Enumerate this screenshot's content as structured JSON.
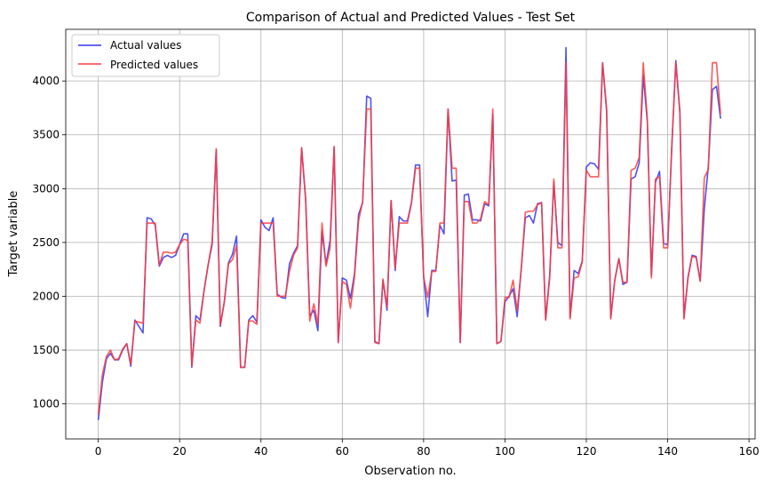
{
  "chart_data": {
    "type": "line",
    "title": "Comparison of Actual and Predicted Values - Test Set",
    "xlabel": "Observation no.",
    "ylabel": "Target variable",
    "xlim": [
      -8,
      161.5
    ],
    "ylim": [
      675,
      4480
    ],
    "xticks": [
      0,
      20,
      40,
      60,
      80,
      100,
      120,
      140,
      160
    ],
    "yticks": [
      1000,
      1500,
      2000,
      2500,
      3000,
      3500,
      4000
    ],
    "grid": true,
    "legend_position": "top-left",
    "x": [
      0,
      1,
      2,
      3,
      4,
      5,
      6,
      7,
      8,
      9,
      10,
      11,
      12,
      13,
      14,
      15,
      16,
      17,
      18,
      19,
      20,
      21,
      22,
      23,
      24,
      25,
      26,
      27,
      28,
      29,
      30,
      31,
      32,
      33,
      34,
      35,
      36,
      37,
      38,
      39,
      40,
      41,
      42,
      43,
      44,
      45,
      46,
      47,
      48,
      49,
      50,
      51,
      52,
      53,
      54,
      55,
      56,
      57,
      58,
      59,
      60,
      61,
      62,
      63,
      64,
      65,
      66,
      67,
      68,
      69,
      70,
      71,
      72,
      73,
      74,
      75,
      76,
      77,
      78,
      79,
      80,
      81,
      82,
      83,
      84,
      85,
      86,
      87,
      88,
      89,
      90,
      91,
      92,
      93,
      94,
      95,
      96,
      97,
      98,
      99,
      100,
      101,
      102,
      103,
      104,
      105,
      106,
      107,
      108,
      109,
      110,
      111,
      112,
      113,
      114,
      115,
      116,
      117,
      118,
      119,
      120,
      121,
      122,
      123,
      124,
      125,
      126,
      127,
      128,
      129,
      130,
      131,
      132,
      133,
      134,
      135,
      136,
      137,
      138,
      139,
      140,
      141,
      142,
      143,
      144,
      145,
      146,
      147,
      148,
      149,
      150,
      151,
      152,
      153
    ],
    "series": [
      {
        "name": "Actual values",
        "color": "#3333ee",
        "values": [
          850,
          1200,
          1420,
          1470,
          1410,
          1410,
          1500,
          1560,
          1350,
          1780,
          1720,
          1660,
          2730,
          2720,
          2660,
          2280,
          2360,
          2380,
          2360,
          2380,
          2480,
          2580,
          2580,
          1340,
          1820,
          1780,
          2050,
          2290,
          2480,
          3360,
          1720,
          1950,
          2310,
          2390,
          2560,
          1340,
          1340,
          1780,
          1820,
          1760,
          2710,
          2640,
          2610,
          2730,
          2020,
          1990,
          1980,
          2300,
          2400,
          2470,
          3380,
          2900,
          1820,
          1870,
          1680,
          2600,
          2300,
          2520,
          3390,
          1570,
          2170,
          2150,
          1980,
          2210,
          2760,
          2870,
          3860,
          3840,
          1580,
          1560,
          2150,
          1870,
          2890,
          2240,
          2740,
          2700,
          2700,
          2870,
          3220,
          3220,
          2180,
          1810,
          2240,
          2240,
          2660,
          2580,
          3740,
          3070,
          3080,
          1570,
          2940,
          2950,
          2710,
          2710,
          2700,
          2860,
          2840,
          3690,
          1560,
          1580,
          1950,
          2000,
          2070,
          1810,
          2260,
          2730,
          2750,
          2680,
          2860,
          2870,
          1780,
          2200,
          3060,
          2500,
          2470,
          4310,
          1800,
          2240,
          2210,
          2330,
          3200,
          3240,
          3230,
          3180,
          4170,
          3710,
          1800,
          2150,
          2350,
          2110,
          2130,
          3090,
          3110,
          3240,
          4050,
          3620,
          2190,
          3060,
          3160,
          2490,
          2480,
          3370,
          4190,
          3720,
          1800,
          2180,
          2380,
          2370,
          2140,
          2810,
          3210,
          3920,
          3950,
          3650
        ],
        "legend_label": "Actual values"
      },
      {
        "name": "Predicted values",
        "color": "#ff3b3b",
        "values": [
          900,
          1270,
          1440,
          1500,
          1410,
          1420,
          1510,
          1560,
          1370,
          1770,
          1760,
          1750,
          2680,
          2680,
          2680,
          2290,
          2410,
          2410,
          2400,
          2410,
          2480,
          2530,
          2520,
          1350,
          1780,
          1750,
          2050,
          2290,
          2510,
          3370,
          1730,
          1950,
          2300,
          2340,
          2470,
          1340,
          1340,
          1770,
          1770,
          1740,
          2680,
          2680,
          2680,
          2680,
          2000,
          2000,
          2000,
          2230,
          2380,
          2450,
          3380,
          2880,
          1770,
          1930,
          1740,
          2680,
          2280,
          2450,
          3390,
          1570,
          2140,
          2110,
          1890,
          2180,
          2700,
          2880,
          3740,
          3740,
          1570,
          1560,
          2160,
          1900,
          2890,
          2260,
          2680,
          2680,
          2680,
          2860,
          3190,
          3190,
          2180,
          1990,
          2230,
          2230,
          2680,
          2680,
          3740,
          3190,
          3190,
          1570,
          2880,
          2880,
          2680,
          2680,
          2720,
          2880,
          2850,
          3740,
          1560,
          1580,
          1990,
          1990,
          2150,
          1870,
          2250,
          2780,
          2790,
          2790,
          2850,
          2870,
          1780,
          2170,
          3090,
          2450,
          2450,
          4170,
          1790,
          2170,
          2180,
          2320,
          3170,
          3110,
          3110,
          3110,
          4170,
          3740,
          1790,
          2150,
          2350,
          2130,
          2130,
          3170,
          3190,
          3290,
          4170,
          3650,
          2170,
          3090,
          3110,
          2450,
          2450,
          3390,
          4170,
          3700,
          1790,
          2170,
          2370,
          2360,
          2140,
          3100,
          3180,
          4170,
          4170,
          3690
        ],
        "legend_label": "Predicted values"
      }
    ]
  }
}
